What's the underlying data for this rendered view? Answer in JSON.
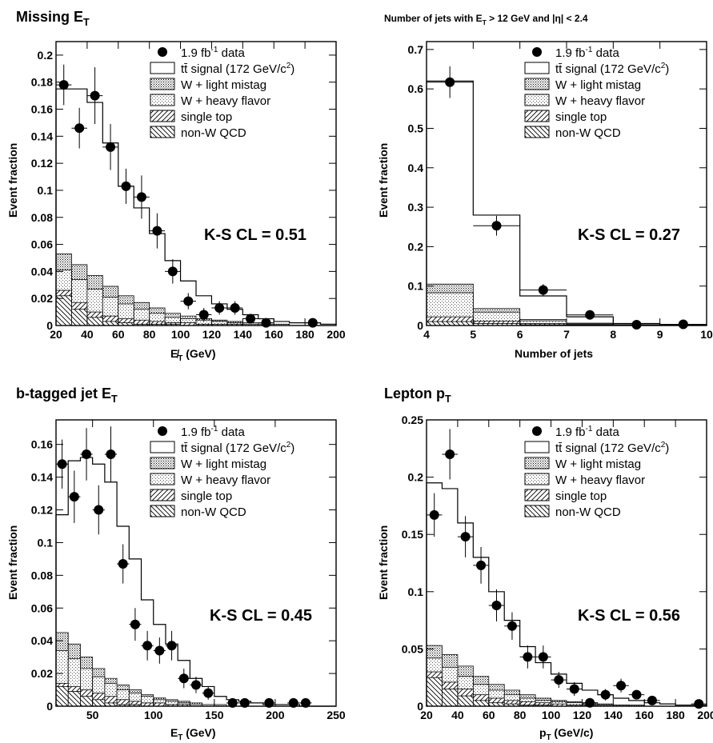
{
  "legend_items": [
    {
      "key": "data",
      "main": "1.9 fb",
      "sup": "-1",
      "rest": " data"
    },
    {
      "key": "ttbar",
      "main": "tt̄ signal (172 GeV/c",
      "sup": "2",
      "rest": ")"
    },
    {
      "key": "wlf",
      "main": "W + light mistag",
      "sup": "",
      "rest": ""
    },
    {
      "key": "whf",
      "main": "W + heavy flavor",
      "sup": "",
      "rest": ""
    },
    {
      "key": "stop",
      "main": "single top",
      "sup": "",
      "rest": ""
    },
    {
      "key": "qcd",
      "main": "non-W QCD",
      "sup": "",
      "rest": ""
    }
  ],
  "chart_data": [
    {
      "type": "bar",
      "title": {
        "main": "Missing E",
        "sub": "T",
        "after": ""
      },
      "xlabel": {
        "main": "E̸",
        "sub": "T",
        "after": " (GeV)"
      },
      "ylabel": "Event fraction",
      "ks_text": "K-S CL = 0.51",
      "xlim": [
        20,
        200
      ],
      "ylim": [
        0,
        0.21
      ],
      "xticks": [
        20,
        40,
        60,
        80,
        100,
        120,
        140,
        160,
        180,
        200
      ],
      "xticklabels": [
        "20",
        "40",
        "60",
        "80",
        "100",
        "120",
        "140",
        "160",
        "180",
        "200"
      ],
      "yticks": [
        0,
        0.02,
        0.04,
        0.06,
        0.08,
        0.1,
        0.12,
        0.14,
        0.16,
        0.18,
        0.2
      ],
      "yticklabels": [
        "0",
        "0.02",
        "0.04",
        "0.06",
        "0.08",
        "0.1",
        "0.12",
        "0.14",
        "0.16",
        "0.18",
        "0.2"
      ],
      "bin_edges": [
        20,
        30,
        40,
        50,
        60,
        70,
        80,
        90,
        100,
        110,
        120,
        130,
        140,
        150,
        160,
        170,
        180,
        190,
        200
      ],
      "stack": {
        "qcd": [
          0.022,
          0.012,
          0.006,
          0.003,
          0.002,
          0.001,
          0.001,
          0.001,
          0,
          0,
          0,
          0,
          0,
          0,
          0,
          0,
          0,
          0
        ],
        "stop": [
          0.026,
          0.017,
          0.01,
          0.007,
          0.005,
          0.004,
          0.003,
          0.002,
          0.002,
          0.001,
          0.001,
          0.001,
          0,
          0,
          0,
          0,
          0,
          0
        ],
        "whf": [
          0.041,
          0.034,
          0.027,
          0.021,
          0.016,
          0.012,
          0.009,
          0.006,
          0.005,
          0.004,
          0.003,
          0.002,
          0.001,
          0.001,
          0,
          0,
          0,
          0
        ],
        "wlf": [
          0.053,
          0.045,
          0.037,
          0.029,
          0.022,
          0.017,
          0.013,
          0.009,
          0.007,
          0.005,
          0.004,
          0.003,
          0.002,
          0.001,
          0.001,
          0,
          0,
          0
        ],
        "total": [
          0.175,
          0.175,
          0.165,
          0.135,
          0.103,
          0.087,
          0.068,
          0.048,
          0.033,
          0.022,
          0.016,
          0.012,
          0.008,
          0.005,
          0.003,
          0.002,
          0.002,
          0.001
        ]
      },
      "data_points": [
        {
          "x": 25,
          "y": 0.178,
          "err": 0.015
        },
        {
          "x": 35,
          "y": 0.146,
          "err": 0.015
        },
        {
          "x": 45,
          "y": 0.17,
          "err": 0.021
        },
        {
          "x": 55,
          "y": 0.132,
          "err": 0.017
        },
        {
          "x": 65,
          "y": 0.103,
          "err": 0.013
        },
        {
          "x": 75,
          "y": 0.095,
          "err": 0.016
        },
        {
          "x": 85,
          "y": 0.07,
          "err": 0.013
        },
        {
          "x": 95,
          "y": 0.04,
          "err": 0.009
        },
        {
          "x": 105,
          "y": 0.018,
          "err": 0.006
        },
        {
          "x": 115,
          "y": 0.008,
          "err": 0.005
        },
        {
          "x": 125,
          "y": 0.013,
          "err": 0.005
        },
        {
          "x": 135,
          "y": 0.013,
          "err": 0.005
        },
        {
          "x": 145,
          "y": 0.005,
          "err": 0.003
        },
        {
          "x": 155,
          "y": 0.002,
          "err": 0.002
        },
        {
          "x": 185,
          "y": 0.002,
          "err": 0.002
        }
      ]
    },
    {
      "type": "bar",
      "title": {
        "main": "Number of jets with E",
        "sub": "T",
        "after": " > 12 GeV and |η| < 2.4"
      },
      "xlabel": {
        "main": "Number of jets",
        "sub": "",
        "after": ""
      },
      "ylabel": "Event fraction",
      "ks_text": "K-S CL = 0.27",
      "xlim": [
        4,
        10
      ],
      "ylim": [
        0,
        0.72
      ],
      "xticks": [
        4,
        5,
        6,
        7,
        8,
        9,
        10
      ],
      "xticklabels": [
        "4",
        "5",
        "6",
        "7",
        "8",
        "9",
        "10"
      ],
      "yticks": [
        0,
        0.1,
        0.2,
        0.3,
        0.4,
        0.5,
        0.6,
        0.7
      ],
      "yticklabels": [
        "0",
        "0.1",
        "0.2",
        "0.3",
        "0.4",
        "0.5",
        "0.6",
        "0.7"
      ],
      "bin_edges": [
        4,
        5,
        6,
        7,
        8,
        9,
        10
      ],
      "stack": {
        "qcd": [
          0.01,
          0.005,
          0.002,
          0.001,
          0,
          0
        ],
        "stop": [
          0.022,
          0.011,
          0.005,
          0.002,
          0.001,
          0
        ],
        "whf": [
          0.083,
          0.034,
          0.012,
          0.004,
          0.001,
          0
        ],
        "wlf": [
          0.105,
          0.043,
          0.015,
          0.006,
          0.002,
          0.001
        ],
        "total": [
          0.62,
          0.28,
          0.075,
          0.022,
          0.005,
          0.002
        ]
      },
      "data_points": [
        {
          "x": 4.5,
          "y": 0.617,
          "err": 0.04
        },
        {
          "x": 5.5,
          "y": 0.253,
          "err": 0.025
        },
        {
          "x": 6.5,
          "y": 0.09,
          "err": 0.015
        },
        {
          "x": 7.5,
          "y": 0.027,
          "err": 0.008
        },
        {
          "x": 8.5,
          "y": 0.002,
          "err": 0.002
        },
        {
          "x": 9.5,
          "y": 0.003,
          "err": 0.002
        }
      ]
    },
    {
      "type": "bar",
      "title": {
        "main": "b-tagged jet E",
        "sub": "T",
        "after": ""
      },
      "xlabel": {
        "main": "E",
        "sub": "T",
        "after": " (GeV)"
      },
      "ylabel": "Event fraction",
      "ks_text": "K-S CL = 0.45",
      "xlim": [
        20,
        250
      ],
      "ylim": [
        0,
        0.175
      ],
      "xticks": [
        50,
        100,
        150,
        200,
        250
      ],
      "xticklabels": [
        "50",
        "100",
        "150",
        "200",
        "250"
      ],
      "yticks": [
        0,
        0.02,
        0.04,
        0.06,
        0.08,
        0.1,
        0.12,
        0.14,
        0.16
      ],
      "yticklabels": [
        "0",
        "0.02",
        "0.04",
        "0.06",
        "0.08",
        "0.1",
        "0.12",
        "0.14",
        "0.16"
      ],
      "bin_edges": [
        20,
        30,
        40,
        50,
        60,
        70,
        80,
        90,
        100,
        110,
        120,
        130,
        140,
        150,
        160,
        170,
        180,
        190,
        200,
        210,
        220,
        230,
        240,
        250
      ],
      "stack": {
        "qcd": [
          0.012,
          0.009,
          0.006,
          0.004,
          0.002,
          0.001,
          0.001,
          0,
          0,
          0,
          0,
          0,
          0,
          0,
          0,
          0,
          0,
          0,
          0,
          0,
          0,
          0,
          0
        ],
        "stop": [
          0.014,
          0.012,
          0.01,
          0.008,
          0.006,
          0.004,
          0.003,
          0.002,
          0.002,
          0.001,
          0.001,
          0,
          0,
          0,
          0,
          0,
          0,
          0,
          0,
          0,
          0,
          0,
          0
        ],
        "whf": [
          0.034,
          0.029,
          0.023,
          0.018,
          0.014,
          0.01,
          0.008,
          0.006,
          0.004,
          0.003,
          0.002,
          0.001,
          0.001,
          0,
          0,
          0,
          0,
          0,
          0,
          0,
          0,
          0,
          0
        ],
        "wlf": [
          0.045,
          0.038,
          0.03,
          0.023,
          0.017,
          0.013,
          0.01,
          0.007,
          0.005,
          0.004,
          0.003,
          0.002,
          0.001,
          0.001,
          0,
          0,
          0,
          0,
          0,
          0,
          0,
          0,
          0
        ],
        "total": [
          0.117,
          0.15,
          0.152,
          0.148,
          0.137,
          0.11,
          0.09,
          0.065,
          0.05,
          0.038,
          0.028,
          0.017,
          0.012,
          0.006,
          0.004,
          0.003,
          0.002,
          0.001,
          0.001,
          0.001,
          0,
          0,
          0
        ]
      },
      "data_points": [
        {
          "x": 25,
          "y": 0.148,
          "err": 0.015
        },
        {
          "x": 35,
          "y": 0.128,
          "err": 0.016
        },
        {
          "x": 45,
          "y": 0.154,
          "err": 0.016
        },
        {
          "x": 55,
          "y": 0.12,
          "err": 0.015
        },
        {
          "x": 65,
          "y": 0.154,
          "err": 0.017
        },
        {
          "x": 75,
          "y": 0.087,
          "err": 0.012
        },
        {
          "x": 85,
          "y": 0.05,
          "err": 0.01
        },
        {
          "x": 95,
          "y": 0.037,
          "err": 0.009
        },
        {
          "x": 105,
          "y": 0.034,
          "err": 0.008
        },
        {
          "x": 115,
          "y": 0.037,
          "err": 0.009
        },
        {
          "x": 125,
          "y": 0.017,
          "err": 0.006
        },
        {
          "x": 135,
          "y": 0.013,
          "err": 0.005
        },
        {
          "x": 145,
          "y": 0.008,
          "err": 0.004
        },
        {
          "x": 165,
          "y": 0.002,
          "err": 0.002
        },
        {
          "x": 175,
          "y": 0.002,
          "err": 0.002
        },
        {
          "x": 195,
          "y": 0.002,
          "err": 0.002
        },
        {
          "x": 215,
          "y": 0.002,
          "err": 0.002
        },
        {
          "x": 225,
          "y": 0.002,
          "err": 0.002
        }
      ]
    },
    {
      "type": "bar",
      "title": {
        "main": "Lepton p",
        "sub": "T",
        "after": ""
      },
      "xlabel": {
        "main": "p",
        "sub": "T",
        "after": " (GeV/c)"
      },
      "ylabel": "Event fraction",
      "ks_text": "K-S CL = 0.56",
      "xlim": [
        20,
        200
      ],
      "ylim": [
        0,
        0.25
      ],
      "xticks": [
        20,
        40,
        60,
        80,
        100,
        120,
        140,
        160,
        180,
        200
      ],
      "xticklabels": [
        "20",
        "40",
        "60",
        "80",
        "100",
        "120",
        "140",
        "160",
        "180",
        "200"
      ],
      "yticks": [
        0,
        0.05,
        0.1,
        0.15,
        0.2,
        0.25
      ],
      "yticklabels": [
        "0",
        "0.05",
        "0.1",
        "0.15",
        "0.2",
        "0.25"
      ],
      "bin_edges": [
        20,
        30,
        40,
        50,
        60,
        70,
        80,
        90,
        100,
        110,
        120,
        130,
        140,
        150,
        160,
        170,
        180,
        190,
        200
      ],
      "stack": {
        "qcd": [
          0.025,
          0.015,
          0.009,
          0.005,
          0.003,
          0.002,
          0.001,
          0.001,
          0,
          0,
          0,
          0,
          0,
          0,
          0,
          0,
          0,
          0
        ],
        "stop": [
          0.03,
          0.021,
          0.015,
          0.01,
          0.007,
          0.005,
          0.004,
          0.003,
          0.002,
          0.001,
          0.001,
          0,
          0,
          0,
          0,
          0,
          0,
          0
        ],
        "whf": [
          0.042,
          0.034,
          0.026,
          0.019,
          0.014,
          0.01,
          0.007,
          0.005,
          0.004,
          0.003,
          0.002,
          0.001,
          0.001,
          0,
          0,
          0,
          0,
          0
        ],
        "wlf": [
          0.053,
          0.045,
          0.035,
          0.026,
          0.019,
          0.014,
          0.01,
          0.007,
          0.005,
          0.004,
          0.003,
          0.002,
          0.001,
          0.001,
          0,
          0,
          0,
          0
        ],
        "total": [
          0.195,
          0.19,
          0.16,
          0.13,
          0.1,
          0.075,
          0.052,
          0.038,
          0.028,
          0.02,
          0.014,
          0.01,
          0.007,
          0.005,
          0.003,
          0.002,
          0.001,
          0.001
        ]
      },
      "data_points": [
        {
          "x": 25,
          "y": 0.167,
          "err": 0.019
        },
        {
          "x": 35,
          "y": 0.22,
          "err": 0.022
        },
        {
          "x": 45,
          "y": 0.148,
          "err": 0.018
        },
        {
          "x": 55,
          "y": 0.123,
          "err": 0.016
        },
        {
          "x": 65,
          "y": 0.088,
          "err": 0.014
        },
        {
          "x": 75,
          "y": 0.07,
          "err": 0.012
        },
        {
          "x": 85,
          "y": 0.043,
          "err": 0.01
        },
        {
          "x": 95,
          "y": 0.043,
          "err": 0.01
        },
        {
          "x": 105,
          "y": 0.023,
          "err": 0.007
        },
        {
          "x": 115,
          "y": 0.015,
          "err": 0.006
        },
        {
          "x": 125,
          "y": 0.003,
          "err": 0.003
        },
        {
          "x": 135,
          "y": 0.01,
          "err": 0.005
        },
        {
          "x": 145,
          "y": 0.018,
          "err": 0.006
        },
        {
          "x": 155,
          "y": 0.01,
          "err": 0.004
        },
        {
          "x": 165,
          "y": 0.005,
          "err": 0.003
        },
        {
          "x": 195,
          "y": 0.002,
          "err": 0.002
        }
      ]
    }
  ]
}
